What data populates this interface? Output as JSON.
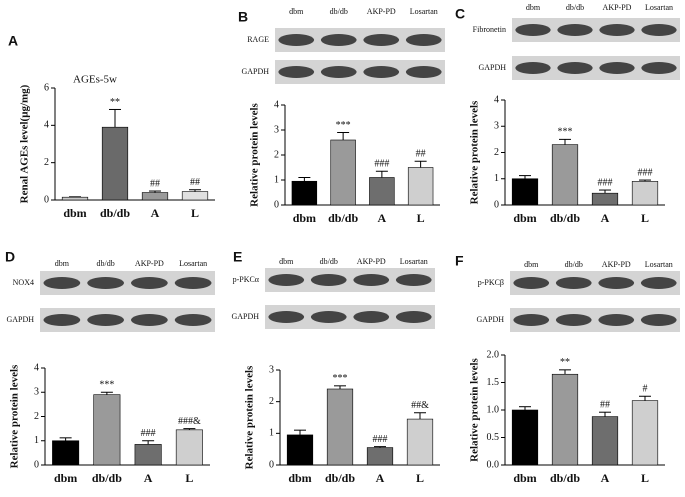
{
  "chart_data": [
    {
      "type": "bar",
      "label": "A",
      "title": "AGEs-5w",
      "ylabel": "Renal AGEs level(μg/mg)",
      "categories": [
        "dbm",
        "db/db",
        "A",
        "L"
      ],
      "values": [
        0.15,
        3.9,
        0.4,
        0.45
      ],
      "errors": [
        0.02,
        0.95,
        0.08,
        0.1
      ],
      "annotations": [
        null,
        "**",
        "##",
        "##"
      ],
      "colors": [
        "#c8c8c8",
        "#6a6a6a",
        "#9a9a9a",
        "#e0e0e0"
      ],
      "ylim": [
        0,
        6
      ],
      "yticks": [
        0,
        2,
        4,
        6
      ]
    },
    {
      "type": "bar",
      "label": "B",
      "ylabel": "Relative protein levels",
      "blot": {
        "lanes": [
          "dbm",
          "db/db",
          "AKP-PD",
          "Losartan"
        ],
        "rows": [
          "RAGE",
          "GAPDH"
        ]
      },
      "categories": [
        "dbm",
        "db/db",
        "A",
        "L"
      ],
      "values": [
        0.95,
        2.6,
        1.1,
        1.5
      ],
      "errors": [
        0.15,
        0.3,
        0.25,
        0.25
      ],
      "annotations": [
        null,
        "***",
        "###",
        "##"
      ],
      "colors": [
        "#000000",
        "#9a9a9a",
        "#6e6e6e",
        "#cfcfcf"
      ],
      "ylim": [
        0,
        4
      ],
      "yticks": [
        0,
        1,
        2,
        3,
        4
      ]
    },
    {
      "type": "bar",
      "label": "C",
      "ylabel": "Relative protein levels",
      "blot": {
        "lanes": [
          "dbm",
          "db/db",
          "AKP-PD",
          "Losartan"
        ],
        "rows": [
          "Fibronetin",
          "GAPDH"
        ]
      },
      "categories": [
        "dbm",
        "db/db",
        "A",
        "L"
      ],
      "values": [
        1.0,
        2.3,
        0.45,
        0.9
      ],
      "errors": [
        0.12,
        0.2,
        0.12,
        0.05
      ],
      "annotations": [
        null,
        "***",
        "###",
        "###"
      ],
      "colors": [
        "#000000",
        "#9a9a9a",
        "#6e6e6e",
        "#cfcfcf"
      ],
      "ylim": [
        0,
        4
      ],
      "yticks": [
        0,
        1,
        2,
        3,
        4
      ]
    },
    {
      "type": "bar",
      "label": "D",
      "ylabel": "Relative protein levels",
      "blot": {
        "lanes": [
          "dbm",
          "db/db",
          "AKP-PD",
          "Losartan"
        ],
        "rows": [
          "NOX4",
          "GAPDH"
        ]
      },
      "categories": [
        "dbm",
        "db/db",
        "A",
        "L"
      ],
      "values": [
        1.0,
        2.9,
        0.85,
        1.45
      ],
      "errors": [
        0.12,
        0.1,
        0.15,
        0.05
      ],
      "annotations": [
        null,
        "***",
        "###",
        "###&"
      ],
      "colors": [
        "#000000",
        "#9a9a9a",
        "#6e6e6e",
        "#cfcfcf"
      ],
      "ylim": [
        0,
        4
      ],
      "yticks": [
        0,
        1,
        2,
        3,
        4
      ]
    },
    {
      "type": "bar",
      "label": "E",
      "ylabel": "Relative protein levels",
      "blot": {
        "lanes": [
          "dbm",
          "db/db",
          "AKP-PD",
          "Losartan"
        ],
        "rows": [
          "p-PKCα",
          "GAPDH"
        ]
      },
      "categories": [
        "dbm",
        "db/db",
        "A",
        "L"
      ],
      "values": [
        0.95,
        2.4,
        0.55,
        1.45
      ],
      "errors": [
        0.15,
        0.1,
        0.03,
        0.2
      ],
      "annotations": [
        null,
        "***",
        "###",
        "##&"
      ],
      "colors": [
        "#000000",
        "#9a9a9a",
        "#6e6e6e",
        "#cfcfcf"
      ],
      "ylim": [
        0,
        3
      ],
      "yticks": [
        0,
        1,
        2,
        3
      ]
    },
    {
      "type": "bar",
      "label": "F",
      "ylabel": "Relative protein levels",
      "blot": {
        "lanes": [
          "dbm",
          "db/db",
          "AKP-PD",
          "Losartan"
        ],
        "rows": [
          "p-PKCβ",
          "GAPDH"
        ]
      },
      "categories": [
        "dbm",
        "db/db",
        "A",
        "L"
      ],
      "values": [
        1.0,
        1.65,
        0.88,
        1.17
      ],
      "errors": [
        0.06,
        0.08,
        0.08,
        0.08
      ],
      "annotations": [
        null,
        "**",
        "##",
        "#"
      ],
      "colors": [
        "#000000",
        "#9a9a9a",
        "#6e6e6e",
        "#cfcfcf"
      ],
      "ylim": [
        0,
        2
      ],
      "yticks": [
        {
          "value": 0,
          "label": "0.0"
        },
        {
          "value": 0.5,
          "label": "0.5"
        },
        {
          "value": 1,
          "label": "1.0"
        },
        {
          "value": 1.5,
          "label": "1.5"
        },
        {
          "value": 2,
          "label": "2.0"
        }
      ]
    }
  ]
}
